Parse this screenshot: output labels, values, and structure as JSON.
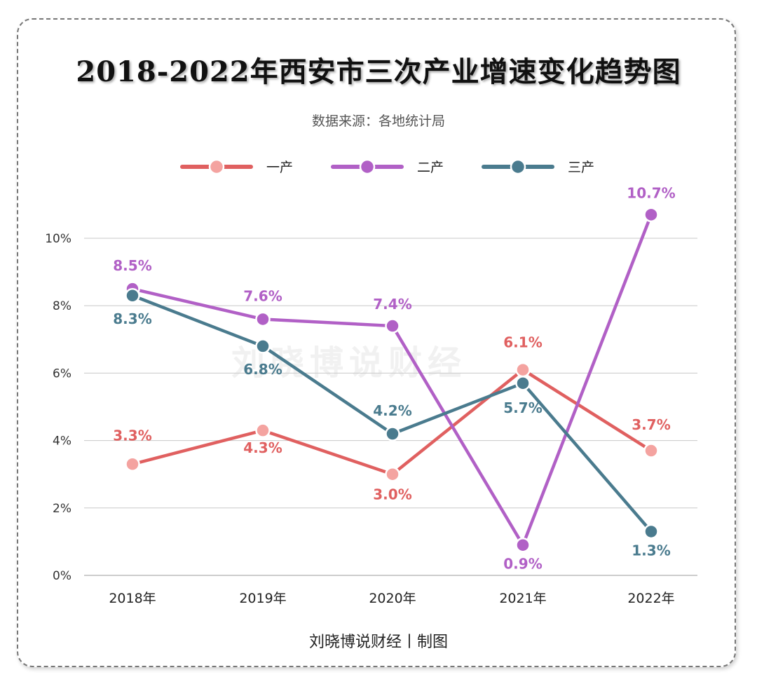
{
  "title": "2018-2022年西安市三次产业增速变化趋势图",
  "subtitle": "数据来源：各地统计局",
  "footer": "刘晓博说财经丨制图",
  "watermark": "刘晓博说财经",
  "chart_data": {
    "type": "line",
    "categories": [
      "2018年",
      "2019年",
      "2020年",
      "2021年",
      "2022年"
    ],
    "ylim": [
      0,
      10
    ],
    "yticks": [
      "0%",
      "2%",
      "4%",
      "6%",
      "8%",
      "10%"
    ],
    "grid": true,
    "legend_position": "top",
    "series": [
      {
        "name": "一产",
        "color": "#e06060",
        "marker": "#f4a3a0",
        "values": [
          3.3,
          4.3,
          3.0,
          6.1,
          3.7
        ],
        "labels": [
          "3.3%",
          "4.3%",
          "3.0%",
          "6.1%",
          "3.7%"
        ]
      },
      {
        "name": "二产",
        "color": "#b160c6",
        "marker": "#b160c6",
        "values": [
          8.5,
          7.6,
          7.4,
          0.9,
          10.7
        ],
        "labels": [
          "8.5%",
          "7.6%",
          "7.4%",
          "0.9%",
          "10.7%"
        ]
      },
      {
        "name": "三产",
        "color": "#4a7b8e",
        "marker": "#4a7b8e",
        "values": [
          8.3,
          6.8,
          4.2,
          5.7,
          1.3
        ],
        "labels": [
          "8.3%",
          "6.8%",
          "4.2%",
          "5.7%",
          "1.3%"
        ]
      }
    ]
  }
}
